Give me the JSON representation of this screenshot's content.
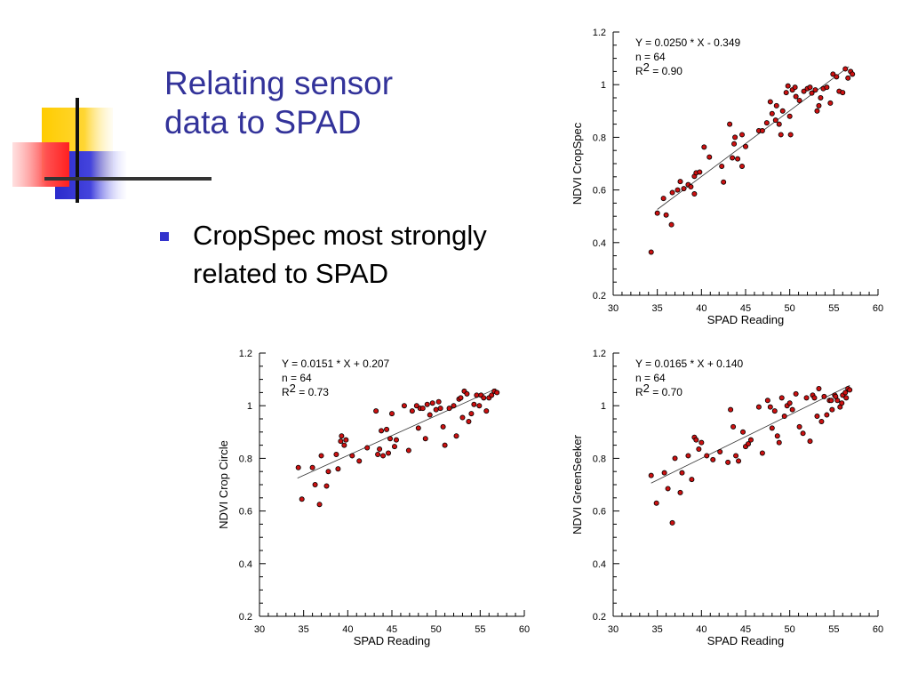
{
  "slide": {
    "title_lines": [
      "Relating sensor",
      "data to SPAD"
    ],
    "bullets": [
      {
        "lines": [
          "CropSpec most strongly",
          "related to SPAD"
        ]
      }
    ],
    "colors": {
      "title": "#33339a",
      "bullet": "#3333cc",
      "logo_yellow": "#ffcc00",
      "logo_blue": "#3333cc",
      "logo_red": "#ff3333",
      "point_fill": "#cc1111"
    }
  },
  "chart_data": [
    {
      "type": "scatter",
      "title": "",
      "xlabel": "SPAD Reading",
      "ylabel": "NDVI CropSpec",
      "xlim": [
        30,
        60
      ],
      "ylim": [
        0.2,
        1.2
      ],
      "xticks": [
        30,
        35,
        40,
        45,
        50,
        55,
        60
      ],
      "yticks": [
        0.2,
        0.4,
        0.6,
        0.8,
        1,
        1.2
      ],
      "xticks_labels": [
        "30",
        "35",
        "40",
        "45",
        "50",
        "55",
        "60"
      ],
      "yticks_labels": [
        "0.2",
        "0.4",
        "0.6",
        "0.8",
        "1",
        "1.2"
      ],
      "grid": false,
      "annotation": {
        "equation": "Y = 0.0250 * X - 0.349",
        "n": "n = 64",
        "r2_prefix": "R",
        "r2_exp": "2",
        "r2_value": " = 0.90"
      },
      "regression": {
        "slope": 0.025,
        "intercept": -0.349,
        "x_range": [
          35,
          56.7
        ]
      },
      "points": [
        [
          34.3,
          0.364
        ],
        [
          35.0,
          0.512
        ],
        [
          35.7,
          0.568
        ],
        [
          36.0,
          0.505
        ],
        [
          36.6,
          0.468
        ],
        [
          36.7,
          0.59
        ],
        [
          37.3,
          0.6
        ],
        [
          37.6,
          0.632
        ],
        [
          38.0,
          0.605
        ],
        [
          38.5,
          0.62
        ],
        [
          38.8,
          0.612
        ],
        [
          39.2,
          0.652
        ],
        [
          39.2,
          0.585
        ],
        [
          39.4,
          0.665
        ],
        [
          39.8,
          0.668
        ],
        [
          40.3,
          0.763
        ],
        [
          40.9,
          0.725
        ],
        [
          42.3,
          0.69
        ],
        [
          42.5,
          0.63
        ],
        [
          43.2,
          0.85
        ],
        [
          43.5,
          0.722
        ],
        [
          43.7,
          0.775
        ],
        [
          43.8,
          0.8
        ],
        [
          44.1,
          0.718
        ],
        [
          44.6,
          0.69
        ],
        [
          44.6,
          0.81
        ],
        [
          45.0,
          0.765
        ],
        [
          46.5,
          0.825
        ],
        [
          46.9,
          0.825
        ],
        [
          47.4,
          0.855
        ],
        [
          47.8,
          0.935
        ],
        [
          48.0,
          0.89
        ],
        [
          48.4,
          0.865
        ],
        [
          48.5,
          0.92
        ],
        [
          48.8,
          0.85
        ],
        [
          49.0,
          0.81
        ],
        [
          49.2,
          0.9
        ],
        [
          49.6,
          0.97
        ],
        [
          49.8,
          0.995
        ],
        [
          50.0,
          0.88
        ],
        [
          50.1,
          0.81
        ],
        [
          50.3,
          0.98
        ],
        [
          50.6,
          0.99
        ],
        [
          50.7,
          0.955
        ],
        [
          51.1,
          0.94
        ],
        [
          51.6,
          0.975
        ],
        [
          52.0,
          0.985
        ],
        [
          52.3,
          0.99
        ],
        [
          52.5,
          0.968
        ],
        [
          52.9,
          0.98
        ],
        [
          53.1,
          0.9
        ],
        [
          53.3,
          0.92
        ],
        [
          53.5,
          0.95
        ],
        [
          53.8,
          0.985
        ],
        [
          54.2,
          0.99
        ],
        [
          54.6,
          0.93
        ],
        [
          54.9,
          1.04
        ],
        [
          55.3,
          1.03
        ],
        [
          55.6,
          0.975
        ],
        [
          56.0,
          0.97
        ],
        [
          56.3,
          1.06
        ],
        [
          56.6,
          1.025
        ],
        [
          56.9,
          1.05
        ],
        [
          57.1,
          1.04
        ]
      ]
    },
    {
      "type": "scatter",
      "title": "",
      "xlabel": "SPAD Reading",
      "ylabel": "NDVI Crop Circle",
      "xlim": [
        30,
        60
      ],
      "ylim": [
        0.2,
        1.2
      ],
      "xticks": [
        30,
        35,
        40,
        45,
        50,
        55,
        60
      ],
      "yticks": [
        0.2,
        0.4,
        0.6,
        0.8,
        1,
        1.2
      ],
      "xticks_labels": [
        "30",
        "35",
        "40",
        "45",
        "50",
        "55",
        "60"
      ],
      "yticks_labels": [
        "0.2",
        "0.4",
        "0.6",
        "0.8",
        "1",
        "1.2"
      ],
      "grid": false,
      "annotation": {
        "equation": "Y = 0.0151 * X + 0.207",
        "n": "n = 64",
        "r2_prefix": "R",
        "r2_exp": "2",
        "r2_value": " = 0.73"
      },
      "regression": {
        "slope": 0.0151,
        "intercept": 0.207,
        "x_range": [
          34.3,
          56.8
        ]
      },
      "points": [
        [
          34.4,
          0.765
        ],
        [
          34.8,
          0.645
        ],
        [
          36.0,
          0.765
        ],
        [
          36.3,
          0.7
        ],
        [
          36.8,
          0.625
        ],
        [
          37.0,
          0.81
        ],
        [
          37.6,
          0.695
        ],
        [
          37.8,
          0.75
        ],
        [
          38.7,
          0.815
        ],
        [
          38.9,
          0.76
        ],
        [
          39.2,
          0.865
        ],
        [
          39.3,
          0.885
        ],
        [
          39.6,
          0.85
        ],
        [
          39.8,
          0.87
        ],
        [
          40.5,
          0.81
        ],
        [
          41.3,
          0.79
        ],
        [
          42.2,
          0.84
        ],
        [
          43.2,
          0.98
        ],
        [
          43.4,
          0.815
        ],
        [
          43.6,
          0.835
        ],
        [
          43.8,
          0.905
        ],
        [
          44.0,
          0.81
        ],
        [
          44.4,
          0.91
        ],
        [
          44.6,
          0.82
        ],
        [
          44.8,
          0.875
        ],
        [
          45.0,
          0.97
        ],
        [
          45.3,
          0.845
        ],
        [
          45.5,
          0.87
        ],
        [
          46.4,
          1.0
        ],
        [
          46.9,
          0.83
        ],
        [
          47.3,
          0.98
        ],
        [
          47.8,
          1.0
        ],
        [
          48.0,
          0.915
        ],
        [
          48.2,
          0.99
        ],
        [
          48.5,
          0.99
        ],
        [
          48.8,
          0.875
        ],
        [
          49.0,
          1.005
        ],
        [
          49.3,
          0.965
        ],
        [
          49.6,
          1.01
        ],
        [
          50.0,
          0.985
        ],
        [
          50.3,
          1.015
        ],
        [
          50.5,
          0.99
        ],
        [
          50.8,
          0.92
        ],
        [
          51.0,
          0.85
        ],
        [
          51.5,
          0.99
        ],
        [
          52.0,
          1.0
        ],
        [
          52.3,
          0.885
        ],
        [
          52.6,
          1.025
        ],
        [
          52.8,
          1.03
        ],
        [
          53.0,
          0.955
        ],
        [
          53.2,
          1.055
        ],
        [
          53.5,
          1.045
        ],
        [
          53.7,
          0.94
        ],
        [
          54.0,
          0.97
        ],
        [
          54.3,
          1.005
        ],
        [
          54.6,
          1.04
        ],
        [
          54.9,
          1.0
        ],
        [
          55.1,
          1.04
        ],
        [
          55.4,
          1.03
        ],
        [
          55.7,
          0.98
        ],
        [
          56.0,
          1.03
        ],
        [
          56.3,
          1.04
        ],
        [
          56.6,
          1.055
        ],
        [
          56.9,
          1.05
        ]
      ]
    },
    {
      "type": "scatter",
      "title": "",
      "xlabel": "SPAD Reading",
      "ylabel": "NDVI GreenSeeker",
      "xlim": [
        30,
        60
      ],
      "ylim": [
        0.2,
        1.2
      ],
      "xticks": [
        30,
        35,
        40,
        45,
        50,
        55,
        60
      ],
      "yticks": [
        0.2,
        0.4,
        0.6,
        0.8,
        1,
        1.2
      ],
      "xticks_labels": [
        "30",
        "35",
        "40",
        "45",
        "50",
        "55",
        "60"
      ],
      "yticks_labels": [
        "0.2",
        "0.4",
        "0.6",
        "0.8",
        "1",
        "1.2"
      ],
      "grid": false,
      "annotation": {
        "equation": "Y = 0.0165 * X + 0.140",
        "n": "n = 64",
        "r2_prefix": "R",
        "r2_exp": "2",
        "r2_value": " = 0.70"
      },
      "regression": {
        "slope": 0.0165,
        "intercept": 0.14,
        "x_range": [
          34.3,
          56.8
        ]
      },
      "points": [
        [
          34.3,
          0.735
        ],
        [
          34.9,
          0.63
        ],
        [
          35.8,
          0.745
        ],
        [
          36.2,
          0.685
        ],
        [
          36.7,
          0.555
        ],
        [
          37.0,
          0.8
        ],
        [
          37.6,
          0.67
        ],
        [
          37.8,
          0.745
        ],
        [
          38.5,
          0.81
        ],
        [
          38.9,
          0.72
        ],
        [
          39.2,
          0.88
        ],
        [
          39.4,
          0.87
        ],
        [
          39.7,
          0.835
        ],
        [
          40.0,
          0.86
        ],
        [
          40.6,
          0.81
        ],
        [
          41.3,
          0.795
        ],
        [
          42.1,
          0.825
        ],
        [
          43.0,
          0.785
        ],
        [
          43.3,
          0.985
        ],
        [
          43.6,
          0.92
        ],
        [
          43.9,
          0.81
        ],
        [
          44.2,
          0.79
        ],
        [
          44.7,
          0.9
        ],
        [
          45.0,
          0.845
        ],
        [
          45.3,
          0.855
        ],
        [
          45.6,
          0.87
        ],
        [
          46.5,
          0.995
        ],
        [
          46.9,
          0.82
        ],
        [
          47.5,
          1.02
        ],
        [
          47.8,
          0.995
        ],
        [
          48.0,
          0.915
        ],
        [
          48.3,
          0.98
        ],
        [
          48.6,
          0.885
        ],
        [
          48.8,
          0.86
        ],
        [
          49.1,
          1.03
        ],
        [
          49.4,
          0.96
        ],
        [
          49.7,
          1.0
        ],
        [
          50.0,
          1.01
        ],
        [
          50.3,
          0.985
        ],
        [
          50.7,
          1.045
        ],
        [
          51.1,
          0.92
        ],
        [
          51.5,
          0.895
        ],
        [
          51.9,
          1.03
        ],
        [
          52.3,
          0.865
        ],
        [
          52.6,
          1.04
        ],
        [
          52.8,
          1.03
        ],
        [
          53.1,
          0.96
        ],
        [
          53.3,
          1.065
        ],
        [
          53.6,
          0.94
        ],
        [
          53.9,
          1.035
        ],
        [
          54.2,
          0.965
        ],
        [
          54.5,
          1.02
        ],
        [
          54.8,
          0.985
        ],
        [
          55.1,
          1.04
        ],
        [
          55.4,
          1.02
        ],
        [
          55.7,
          0.995
        ],
        [
          56.0,
          1.04
        ],
        [
          56.3,
          1.05
        ],
        [
          56.6,
          1.065
        ],
        [
          56.8,
          1.06
        ],
        [
          56.4,
          1.03
        ],
        [
          55.9,
          1.01
        ],
        [
          55.2,
          1.035
        ],
        [
          54.7,
          1.02
        ]
      ]
    }
  ]
}
